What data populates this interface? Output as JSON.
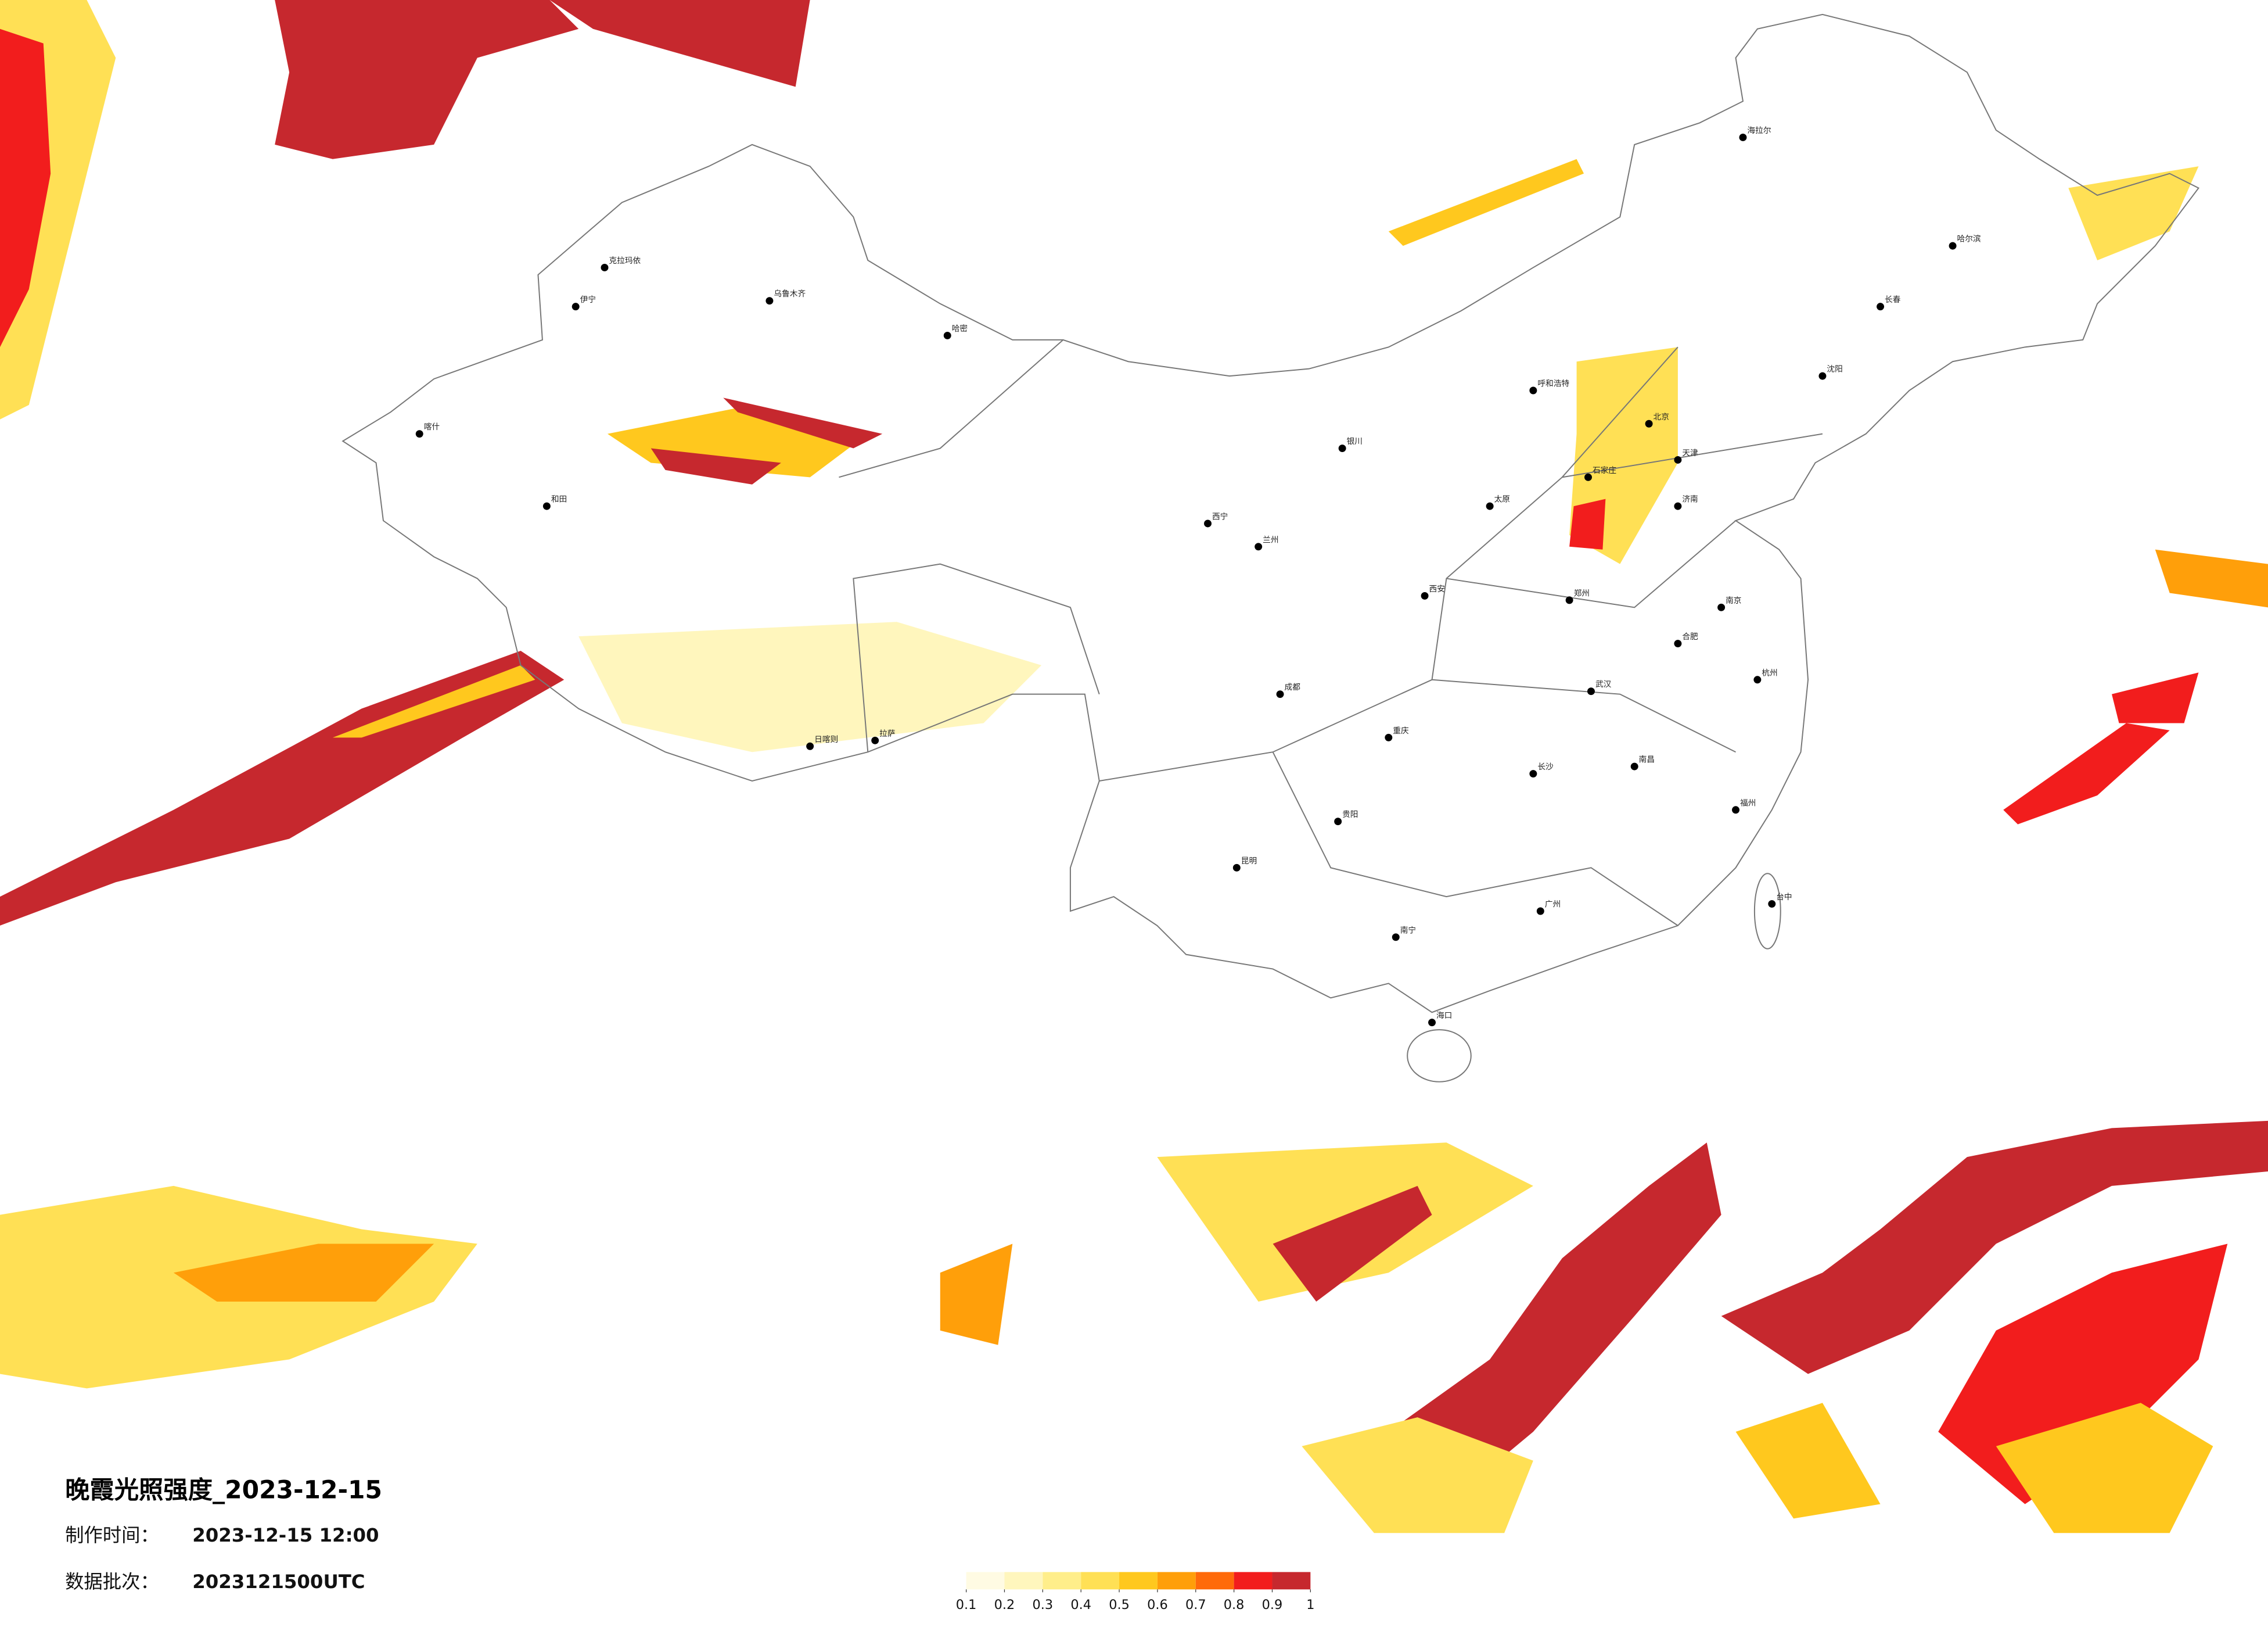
{
  "header": {
    "title": "晚霞光照强度_2023-12-15",
    "time_label": "制作时间：",
    "time_value": "2023-12-15 12:00",
    "batch_label": "数据批次：",
    "batch_value": "2023121500UTC"
  },
  "legend": {
    "ticks": [
      0.1,
      0.2,
      0.3,
      0.4,
      0.5,
      0.6,
      0.7,
      0.8,
      0.9,
      1
    ],
    "colors": [
      "#fffbe3",
      "#fff6bd",
      "#ffee8a",
      "#ffe055",
      "#ffc81e",
      "#ff9f0a",
      "#ff6a0a",
      "#f21d1d",
      "#c6282e"
    ]
  },
  "cities": [
    {
      "name": "克拉玛依"
    },
    {
      "name": "乌鲁木齐"
    },
    {
      "name": "伊宁"
    },
    {
      "name": "喀什"
    },
    {
      "name": "和田"
    },
    {
      "name": "哈密"
    },
    {
      "name": "拉萨"
    },
    {
      "name": "日喀则"
    },
    {
      "name": "西宁"
    },
    {
      "name": "兰州"
    },
    {
      "name": "银川"
    },
    {
      "name": "呼和浩特"
    },
    {
      "name": "北京"
    },
    {
      "name": "天津"
    },
    {
      "name": "石家庄"
    },
    {
      "name": "太原"
    },
    {
      "name": "西安"
    },
    {
      "name": "郑州"
    },
    {
      "name": "济南"
    },
    {
      "name": "成都"
    },
    {
      "name": "重庆"
    },
    {
      "name": "贵阳"
    },
    {
      "name": "昆明"
    },
    {
      "name": "南宁"
    },
    {
      "name": "长沙"
    },
    {
      "name": "武汉"
    },
    {
      "name": "南昌"
    },
    {
      "name": "合肥"
    },
    {
      "name": "南京"
    },
    {
      "name": "杭州"
    },
    {
      "name": "福州"
    },
    {
      "name": "广州"
    },
    {
      "name": "海口"
    },
    {
      "name": "沈阳"
    },
    {
      "name": "长春"
    },
    {
      "name": "哈尔滨"
    },
    {
      "name": "台中"
    },
    {
      "name": "海拉尔"
    }
  ]
}
